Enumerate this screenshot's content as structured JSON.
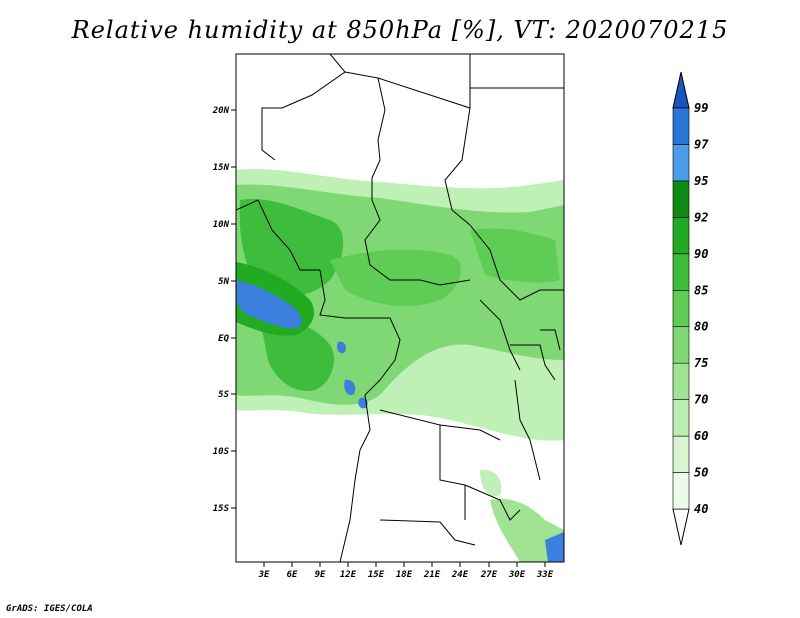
{
  "title": "Relative humidity at 850hPa [%], VT: 2020070215",
  "credit": "GrADS: IGES/COLA",
  "map": {
    "lat_labels": [
      "20N",
      "15N",
      "10N",
      "5N",
      "EQ",
      "5S",
      "10S",
      "15S"
    ],
    "lon_labels": [
      "3E",
      "6E",
      "9E",
      "12E",
      "15E",
      "18E",
      "21E",
      "24E",
      "27E",
      "30E",
      "33E"
    ]
  },
  "colorbar": {
    "levels": [
      "40",
      "50",
      "60",
      "70",
      "75",
      "80",
      "85",
      "90",
      "92",
      "95",
      "97",
      "99"
    ],
    "colors": [
      "#ecfbe9",
      "#d7f5d0",
      "#bbedb1",
      "#9fe393",
      "#7fd873",
      "#5fcc56",
      "#3dbd3b",
      "#22aa22",
      "#0f8a12",
      "#4a9de8",
      "#2a76d8",
      "#1a55c0"
    ]
  },
  "colors": {
    "ocean_blue": "#3a80dc",
    "light_green": "#bff0b5",
    "mid_green": "#7fd873",
    "dark_green": "#3dbd3b"
  }
}
